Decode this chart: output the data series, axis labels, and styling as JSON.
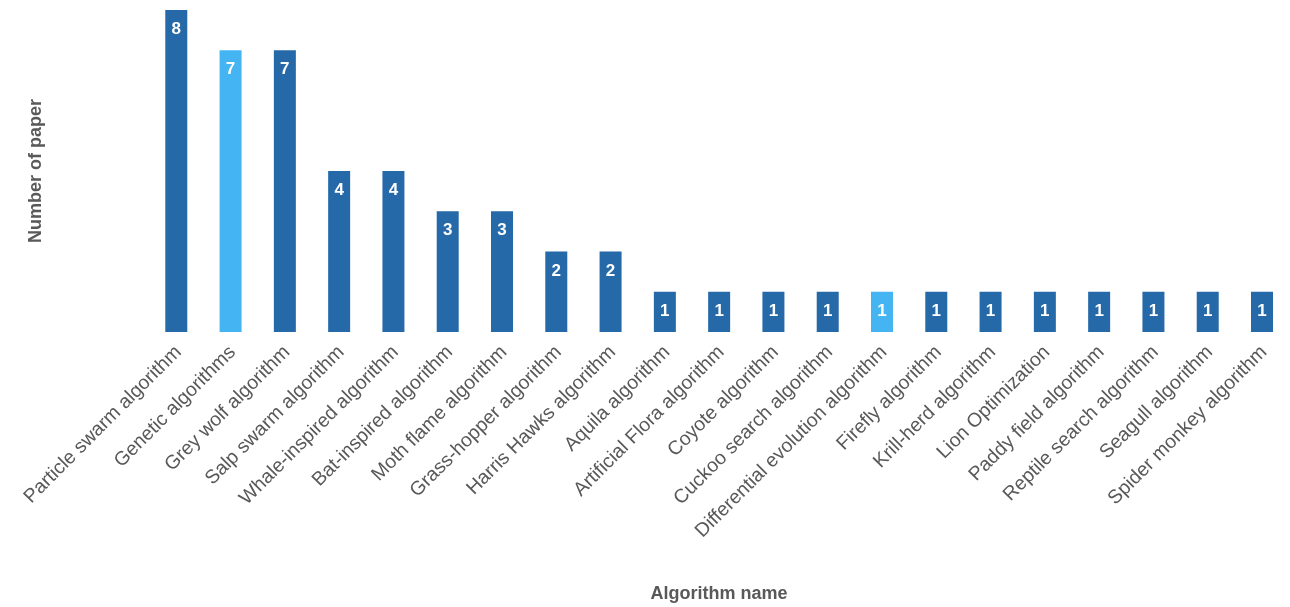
{
  "chart_data": {
    "type": "bar",
    "xlabel": "Algorithm name",
    "ylabel": "Number of paper",
    "categories": [
      "Particle swarm algorithm",
      "Genetic algorithms",
      "Grey wolf algorithm",
      "Salp swarm algorithm",
      "Whale-inspired algorithm",
      "Bat-inspired algorithm",
      "Moth flame algorithm",
      "Grass-hopper algorithm",
      "Harris Hawks algorithm",
      "Aquila algorithm",
      "Artificial Flora algorithm",
      "Coyote algorithm",
      "Cuckoo search algorithm",
      "Differential evolution algorithm",
      "Firefly algorithm",
      "Krill-herd algorithm",
      "Lion Optimization",
      "Paddy field algorithm",
      "Reptile search algorithm",
      "Seagull algorithm",
      "Spider monkey algorithm"
    ],
    "values": [
      8,
      7,
      7,
      4,
      4,
      3,
      3,
      2,
      2,
      1,
      1,
      1,
      1,
      1,
      1,
      1,
      1,
      1,
      1,
      1,
      1
    ],
    "colors": [
      "#2569a8",
      "#45b4f3",
      "#2569a8",
      "#2569a8",
      "#2569a8",
      "#2569a8",
      "#2569a8",
      "#2569a8",
      "#2569a8",
      "#2569a8",
      "#2569a8",
      "#2569a8",
      "#2569a8",
      "#45b4f3",
      "#2569a8",
      "#2569a8",
      "#2569a8",
      "#2569a8",
      "#2569a8",
      "#2569a8",
      "#2569a8"
    ],
    "ylim": [
      0,
      8
    ],
    "tick_labels": "x",
    "data_labels": true
  }
}
